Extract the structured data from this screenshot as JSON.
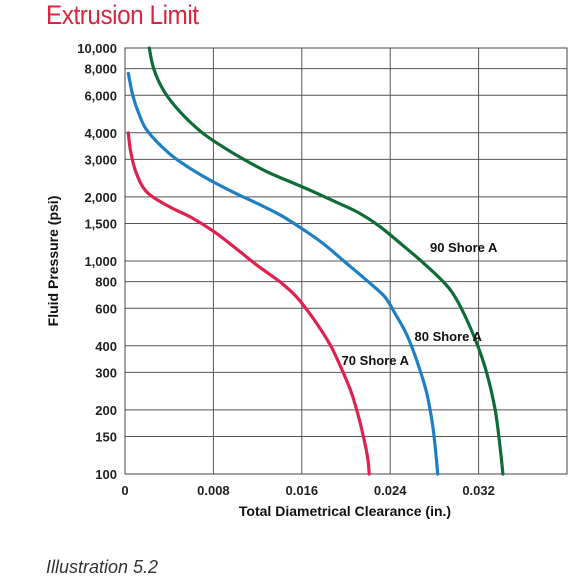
{
  "page": {
    "title": "Extrusion Limit",
    "caption": "Illustration 5.2"
  },
  "chart_data": {
    "type": "line",
    "title": "Extrusion Limit",
    "xlabel": "Total Diametrical Clearance (in.)",
    "ylabel": "Fluid Pressure (psi)",
    "xlim": [
      0,
      0.04
    ],
    "ylim": [
      100,
      10000
    ],
    "yscale": "log",
    "grid": true,
    "x_ticks": [
      {
        "value": 0,
        "label": "0"
      },
      {
        "value": 0.008,
        "label": "0.008"
      },
      {
        "value": 0.016,
        "label": "0.016"
      },
      {
        "value": 0.024,
        "label": "0.024"
      },
      {
        "value": 0.032,
        "label": "0.032"
      }
    ],
    "x_gridlines": [
      0,
      0.008,
      0.016,
      0.024,
      0.032,
      0.04
    ],
    "y_ticks": [
      {
        "value": 100,
        "label": "100"
      },
      {
        "value": 150,
        "label": "150"
      },
      {
        "value": 200,
        "label": "200"
      },
      {
        "value": 300,
        "label": "300"
      },
      {
        "value": 400,
        "label": "400"
      },
      {
        "value": 600,
        "label": "600"
      },
      {
        "value": 800,
        "label": "800"
      },
      {
        "value": 1000,
        "label": "1,000"
      },
      {
        "value": 1500,
        "label": "1,500"
      },
      {
        "value": 2000,
        "label": "2,000"
      },
      {
        "value": 3000,
        "label": "3,000"
      },
      {
        "value": 4000,
        "label": "4,000"
      },
      {
        "value": 6000,
        "label": "6,000"
      },
      {
        "value": 8000,
        "label": "8,000"
      },
      {
        "value": 10000,
        "label": "10,000"
      }
    ],
    "series": [
      {
        "name": "70 Shore A",
        "color": "#e0204f",
        "points": [
          [
            0.0003,
            4000
          ],
          [
            0.0005,
            3300
          ],
          [
            0.001,
            2600
          ],
          [
            0.002,
            2100
          ],
          [
            0.004,
            1800
          ],
          [
            0.006,
            1600
          ],
          [
            0.008,
            1380
          ],
          [
            0.01,
            1150
          ],
          [
            0.012,
            950
          ],
          [
            0.014,
            800
          ],
          [
            0.0155,
            680
          ],
          [
            0.017,
            540
          ],
          [
            0.0185,
            410
          ],
          [
            0.0195,
            320
          ],
          [
            0.0205,
            240
          ],
          [
            0.0212,
            180
          ],
          [
            0.0217,
            140
          ],
          [
            0.022,
            115
          ],
          [
            0.0221,
            100
          ]
        ]
      },
      {
        "name": "80 Shore A",
        "color": "#1f7fc4",
        "points": [
          [
            0.0003,
            7600
          ],
          [
            0.0007,
            6000
          ],
          [
            0.0012,
            5000
          ],
          [
            0.002,
            4100
          ],
          [
            0.004,
            3200
          ],
          [
            0.006,
            2700
          ],
          [
            0.008,
            2350
          ],
          [
            0.01,
            2080
          ],
          [
            0.012,
            1860
          ],
          [
            0.014,
            1650
          ],
          [
            0.016,
            1420
          ],
          [
            0.018,
            1200
          ],
          [
            0.02,
            980
          ],
          [
            0.022,
            800
          ],
          [
            0.0235,
            680
          ],
          [
            0.0245,
            560
          ],
          [
            0.0255,
            450
          ],
          [
            0.0265,
            330
          ],
          [
            0.0273,
            240
          ],
          [
            0.0278,
            175
          ],
          [
            0.0281,
            130
          ],
          [
            0.0283,
            100
          ]
        ]
      },
      {
        "name": "90 Shore A",
        "color": "#0f6b37",
        "points": [
          [
            0.0022,
            10000
          ],
          [
            0.0026,
            8000
          ],
          [
            0.0035,
            6300
          ],
          [
            0.005,
            5000
          ],
          [
            0.007,
            4000
          ],
          [
            0.009,
            3400
          ],
          [
            0.011,
            2950
          ],
          [
            0.013,
            2600
          ],
          [
            0.015,
            2350
          ],
          [
            0.017,
            2120
          ],
          [
            0.019,
            1900
          ],
          [
            0.021,
            1700
          ],
          [
            0.023,
            1460
          ],
          [
            0.025,
            1200
          ],
          [
            0.027,
            980
          ],
          [
            0.029,
            780
          ],
          [
            0.03,
            660
          ],
          [
            0.031,
            520
          ],
          [
            0.032,
            390
          ],
          [
            0.0328,
            290
          ],
          [
            0.0335,
            200
          ],
          [
            0.0339,
            140
          ],
          [
            0.0342,
            100
          ]
        ]
      }
    ],
    "series_label_values": [
      {
        "series": "90 Shore A",
        "x": 0.0276,
        "y": 1100
      },
      {
        "series": "80 Shore A",
        "x": 0.0262,
        "y": 420
      },
      {
        "series": "70 Shore A",
        "x": 0.0196,
        "y": 325
      }
    ]
  }
}
